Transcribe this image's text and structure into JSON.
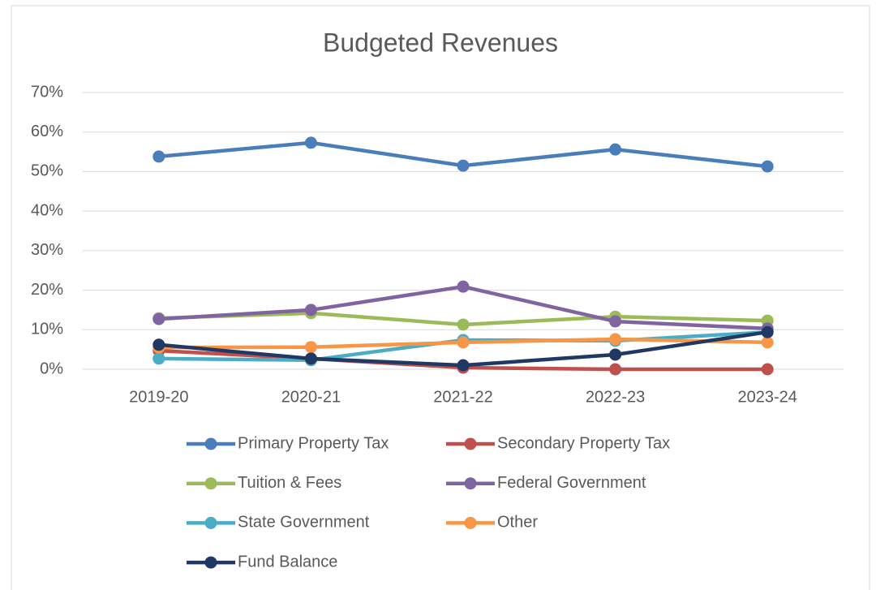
{
  "chart_data": {
    "type": "line",
    "title": "Budgeted Revenues",
    "categories": [
      "2019-20",
      "2020-21",
      "2021-22",
      "2022-23",
      "2023-24"
    ],
    "series": [
      {
        "name": "Primary Property Tax",
        "color": "#4a7ebb",
        "values": [
          53.8,
          57.3,
          51.5,
          55.6,
          51.3
        ]
      },
      {
        "name": "Secondary Property Tax",
        "color": "#c0504d",
        "values": [
          4.7,
          2.7,
          0.4,
          0,
          0
        ]
      },
      {
        "name": "Tuition & Fees",
        "color": "#9bbb59",
        "values": [
          12.9,
          14.2,
          11.3,
          13.3,
          12.3
        ]
      },
      {
        "name": "Federal Government",
        "color": "#8064a2",
        "values": [
          12.7,
          15.0,
          20.9,
          12.1,
          10.3
        ]
      },
      {
        "name": "State Government",
        "color": "#4bacc6",
        "values": [
          2.7,
          2.3,
          7.4,
          7.2,
          9.4
        ]
      },
      {
        "name": "Other",
        "color": "#f79646",
        "values": [
          5.5,
          5.6,
          6.8,
          7.6,
          6.8
        ]
      },
      {
        "name": "Fund Balance",
        "color": "#1f3864",
        "values": [
          6.2,
          2.7,
          1.0,
          3.7,
          9.4
        ]
      }
    ],
    "ylim": [
      0,
      70
    ],
    "yticks": [
      {
        "value": 0,
        "label": "0%"
      },
      {
        "value": 10,
        "label": "10%"
      },
      {
        "value": 20,
        "label": "20%"
      },
      {
        "value": 30,
        "label": "30%"
      },
      {
        "value": 40,
        "label": "40%"
      },
      {
        "value": 50,
        "label": "50%"
      },
      {
        "value": 60,
        "label": "60%"
      },
      {
        "value": 70,
        "label": "70%"
      }
    ],
    "grid": true,
    "legend": "bottom"
  }
}
